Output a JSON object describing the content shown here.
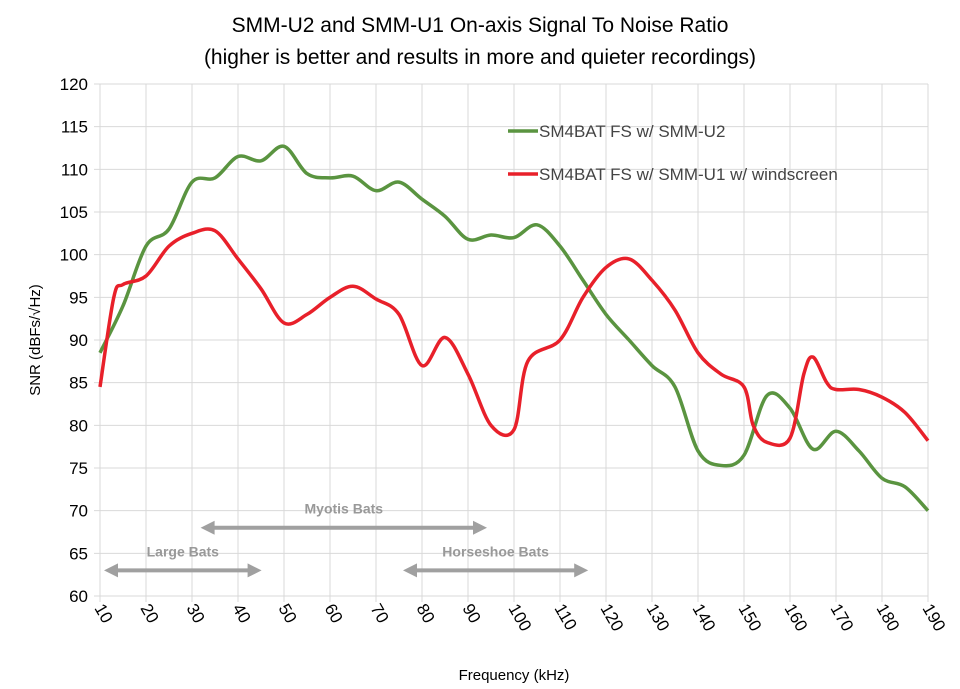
{
  "chart_data": {
    "type": "line",
    "title": "SMM-U2 and SMM-U1 On-axis Signal To Noise Ratio",
    "subtitle": "(higher is better and results in more and quieter recordings)",
    "xlabel": "Frequency (kHz)",
    "ylabel": "SNR (dBFs/√Hz)",
    "xlim": [
      10,
      190
    ],
    "ylim": [
      60,
      120
    ],
    "xticks": [
      10,
      20,
      30,
      40,
      50,
      60,
      70,
      80,
      90,
      100,
      110,
      120,
      130,
      140,
      150,
      160,
      170,
      180,
      190
    ],
    "yticks": [
      60,
      65,
      70,
      75,
      80,
      85,
      90,
      95,
      100,
      105,
      110,
      115,
      120
    ],
    "grid": true,
    "legend_position": "top-right",
    "series": [
      {
        "name": "SM4BAT FS w/ SMM-U2",
        "color": "#5a9440",
        "x": [
          10,
          15,
          20,
          25,
          30,
          35,
          40,
          45,
          50,
          55,
          60,
          65,
          70,
          75,
          80,
          85,
          90,
          95,
          100,
          105,
          110,
          115,
          120,
          125,
          130,
          135,
          140,
          145,
          150,
          155,
          160,
          165,
          170,
          175,
          180,
          185,
          190
        ],
        "y": [
          88.5,
          94,
          101,
          103,
          108.5,
          109,
          111.5,
          111,
          112.7,
          109.5,
          109,
          109.2,
          107.5,
          108.5,
          106.5,
          104.5,
          101.8,
          102.3,
          102,
          103.5,
          101,
          97,
          93,
          90,
          87,
          84.5,
          77,
          75.3,
          76.5,
          83.5,
          82,
          77.2,
          79.3,
          77,
          73.8,
          72.8,
          70
        ]
      },
      {
        "name": "SM4BAT FS w/ SMM-U1 w/ windscreen",
        "color": "#e8202a",
        "x": [
          10,
          13,
          15,
          20,
          25,
          30,
          35,
          40,
          45,
          50,
          55,
          60,
          65,
          70,
          75,
          80,
          85,
          90,
          95,
          100,
          103,
          110,
          115,
          120,
          125,
          130,
          135,
          140,
          145,
          150,
          152,
          155,
          160,
          163,
          165,
          168,
          170,
          175,
          180,
          185,
          190
        ],
        "y": [
          84.5,
          95,
          96.5,
          97.5,
          101,
          102.5,
          102.8,
          99.5,
          96,
          92,
          93,
          95,
          96.3,
          94.8,
          93,
          87,
          90.3,
          86,
          80,
          79.5,
          87.5,
          90,
          95,
          98.5,
          99.5,
          97,
          93.5,
          88.5,
          86,
          84.5,
          80,
          78,
          78.5,
          86,
          88,
          85,
          84.2,
          84.2,
          83.3,
          81.5,
          78.2
        ]
      }
    ],
    "annotations": [
      {
        "label": "Myotis Bats",
        "x_range": [
          31,
          95
        ],
        "y": 68
      },
      {
        "label": "Large Bats",
        "x_range": [
          10,
          46
        ],
        "y": 63
      },
      {
        "label": "Horseshoe Bats",
        "x_range": [
          75,
          117
        ],
        "y": 63
      }
    ],
    "annotation_color": "#a0a0a0"
  }
}
